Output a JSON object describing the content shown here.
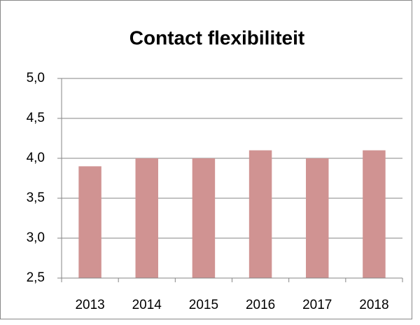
{
  "chart_data": {
    "type": "bar",
    "title": "Contact flexibiliteit",
    "categories": [
      "2013",
      "2014",
      "2015",
      "2016",
      "2017",
      "2018"
    ],
    "values": [
      3.9,
      4.0,
      4.0,
      4.1,
      4.0,
      4.1
    ],
    "color": "#d09392",
    "ylim": [
      2.5,
      5.0
    ],
    "yticks": [
      {
        "value": 2.5,
        "label": "2,5"
      },
      {
        "value": 3.0,
        "label": "3,0"
      },
      {
        "value": 3.5,
        "label": "3,5"
      },
      {
        "value": 4.0,
        "label": "4,0"
      },
      {
        "value": 4.5,
        "label": "4,5"
      },
      {
        "value": 5.0,
        "label": "5,0"
      }
    ],
    "grid": true
  }
}
